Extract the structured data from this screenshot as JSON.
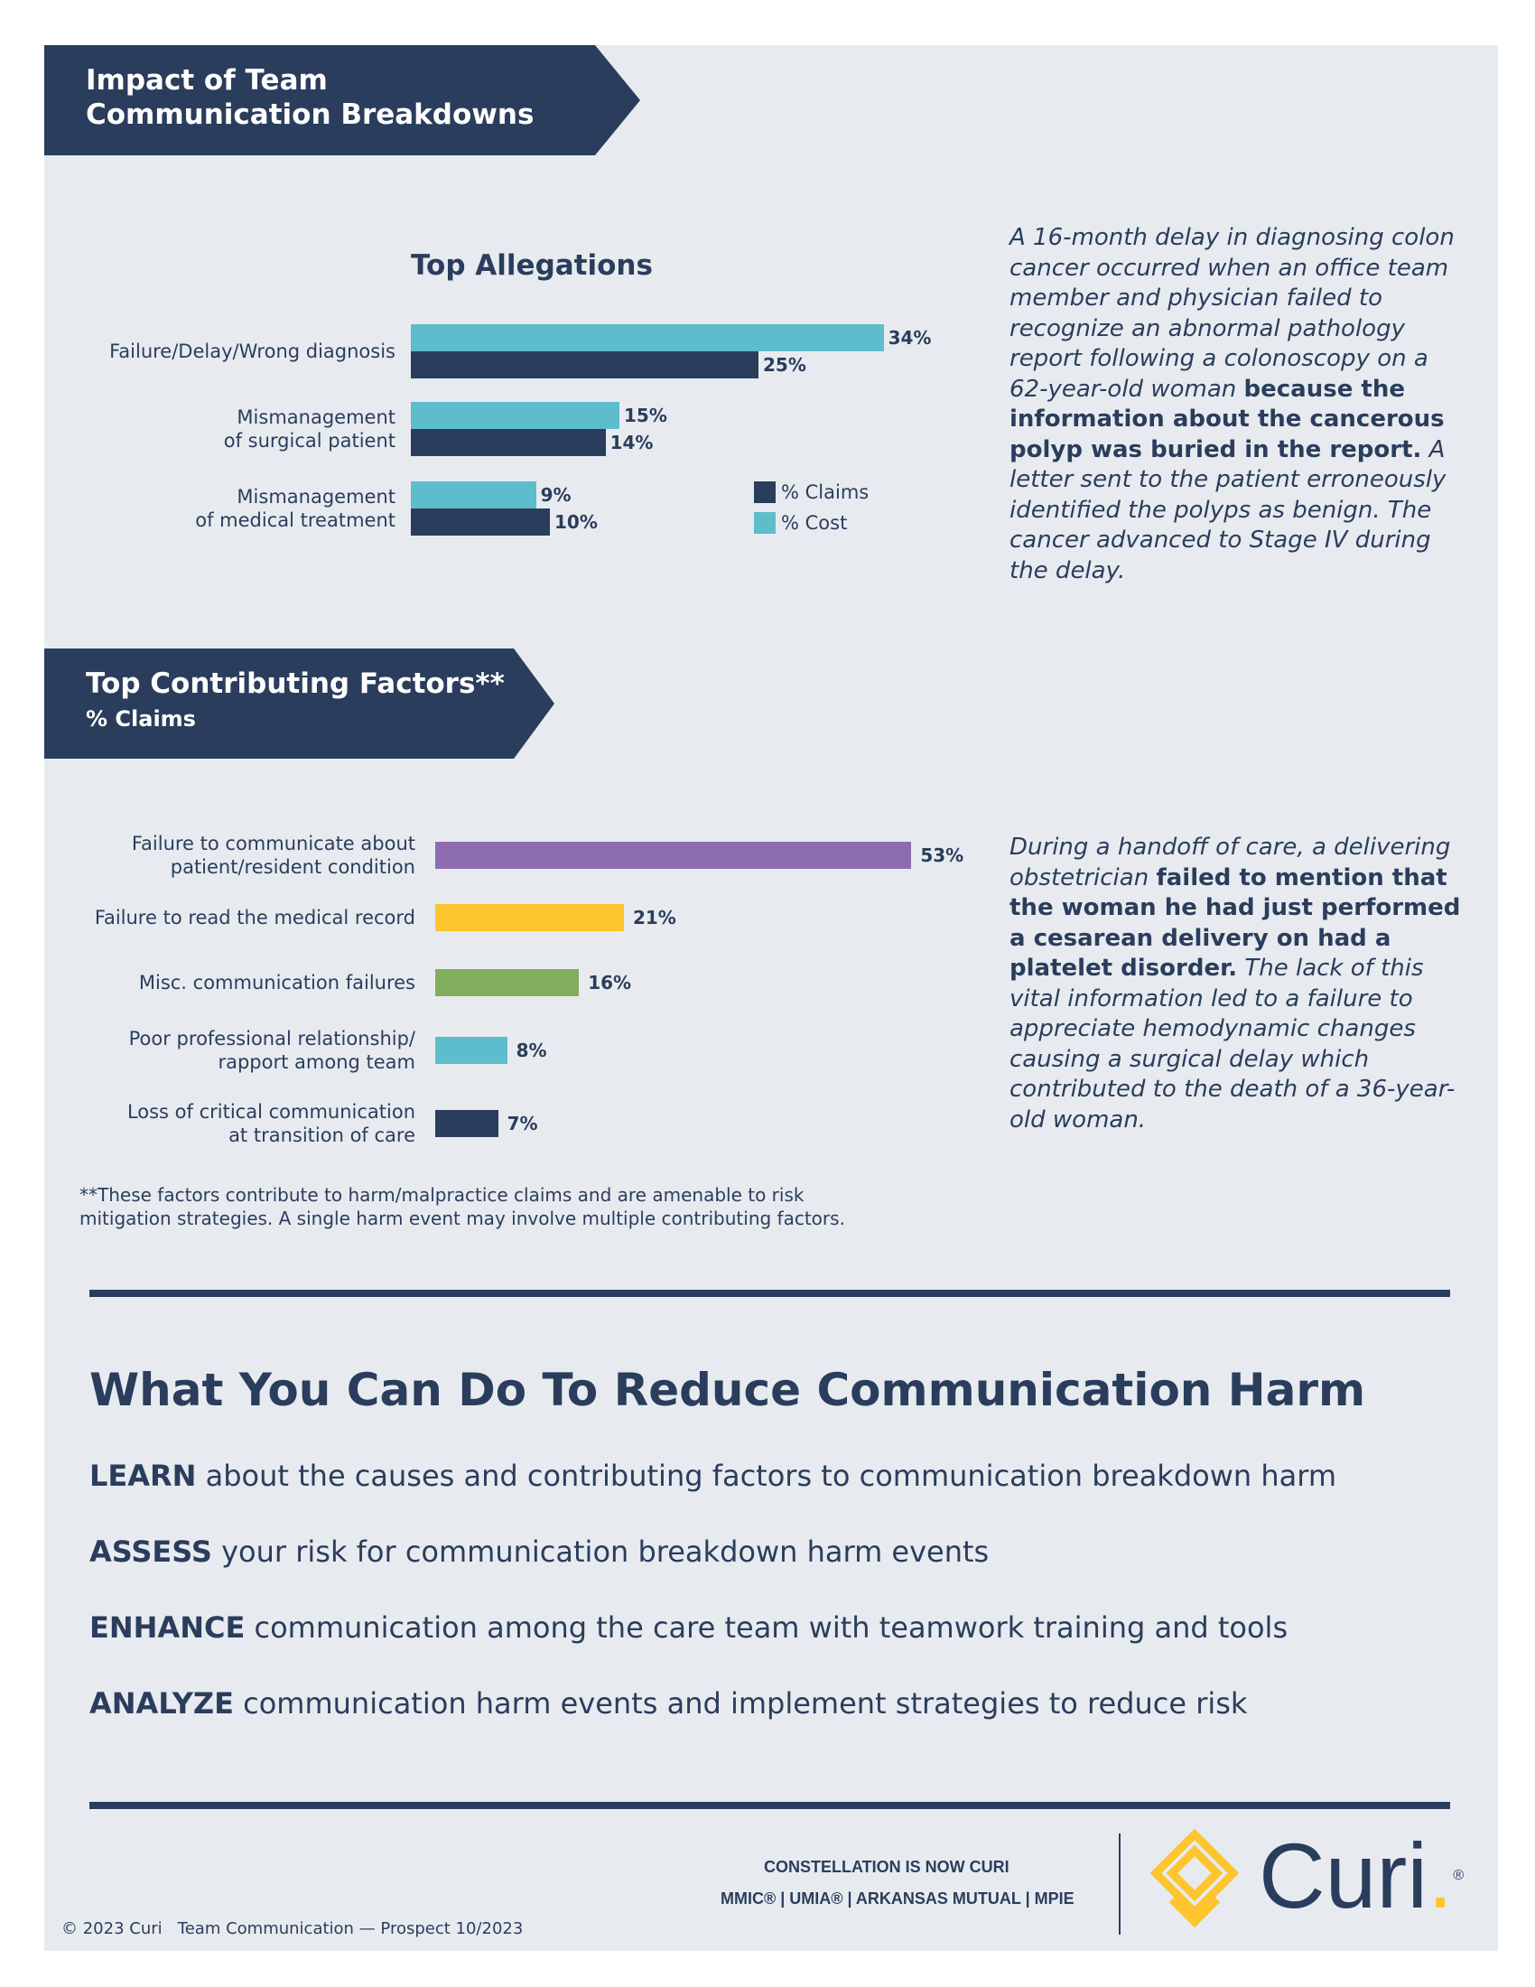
{
  "banner1": {
    "line1": "Impact of Team",
    "line2": "Communication Breakdowns"
  },
  "chart1": {
    "title": "Top Allegations"
  },
  "banner2": {
    "title": "Top Contributing Factors**",
    "subtitle": "% Claims"
  },
  "chart_data": [
    {
      "type": "bar",
      "orientation": "horizontal",
      "title": "Top Allegations",
      "categories": [
        [
          "Failure/Delay/Wrong diagnosis"
        ],
        [
          "Mismanagement",
          "of surgical patient"
        ],
        [
          "Mismanagement",
          "of medical treatment"
        ]
      ],
      "series": [
        {
          "name": "% Cost",
          "color": "#5dbdcc",
          "values": [
            34,
            15,
            9
          ],
          "labels": [
            "34%",
            "15%",
            "9%"
          ]
        },
        {
          "name": "% Claims",
          "color": "#2b3d5c",
          "values": [
            25,
            14,
            10
          ],
          "labels": [
            "25%",
            "14%",
            "10%"
          ]
        }
      ],
      "legend": [
        {
          "name": "% Claims",
          "color": "#2b3d5c"
        },
        {
          "name": "% Cost",
          "color": "#5dbdcc"
        }
      ],
      "legend_position": "right",
      "grid": false
    },
    {
      "type": "bar",
      "orientation": "horizontal",
      "categories": [
        [
          "Failure to communicate about",
          "patient/resident condition"
        ],
        [
          "Failure to read the medical record"
        ],
        [
          "Misc. communication failures"
        ],
        [
          "Poor professional relationship/",
          "rapport among team"
        ],
        [
          "Loss of critical communication",
          "at transition of care"
        ]
      ],
      "values": [
        53,
        21,
        16,
        8,
        7
      ],
      "labels": [
        "53%",
        "21%",
        "16%",
        "8%",
        "7%"
      ],
      "colors": [
        "#8d6db0",
        "#fec52e",
        "#82ad5c",
        "#5dbdcc",
        "#2b3d5c"
      ],
      "grid": false
    }
  ],
  "story1": {
    "pre": "A 16-month delay in diagnosing colon cancer occurred when an office team member and physician failed to recognize an abnormal pathology report following a colonoscopy on a 62-year-old woman ",
    "bold": "because the information about the cancerous polyp was buried in the report.",
    "post": " A letter sent to the patient erroneously identified the polyps as benign. The cancer advanced to Stage IV during the delay."
  },
  "story2": {
    "pre": "During a handoff of care, a delivering obstetrician ",
    "bold": "failed to mention that the woman he had just performed a cesarean delivery on had a platelet disorder.",
    "post": " The lack of this vital information led to a failure to appreciate hemodynamic changes causing a surgical delay which contributed to the death of a 36-year-old woman."
  },
  "footnote": {
    "line1": "**These factors contribute to harm/malpractice claims and are amenable to risk",
    "line2": "mitigation strategies. A single harm event may involve multiple contributing factors."
  },
  "actions": {
    "heading": "What You Can Do To Reduce Communication Harm",
    "items": [
      {
        "verb": "LEARN",
        "text": " about the causes and contributing factors to communication breakdown harm"
      },
      {
        "verb": "ASSESS",
        "text": " your risk for communication breakdown harm events"
      },
      {
        "verb": "ENHANCE",
        "text": " communication among the care team with teamwork training and tools"
      },
      {
        "verb": "ANALYZE",
        "text": " communication harm events and implement strategies to reduce risk"
      }
    ]
  },
  "footer": {
    "tagline": "CONSTELLATION IS NOW CURI",
    "companies": "MMIC® | UMIA® | ARKANSAS MUTUAL | MPIE",
    "logo_text": "Curi",
    "logo_mark": "®",
    "copyright": "© 2023 Curi   Team Communication — Prospect 10/2023",
    "colors": {
      "navy": "#2b3d5c",
      "gold": "#fec52e"
    }
  }
}
